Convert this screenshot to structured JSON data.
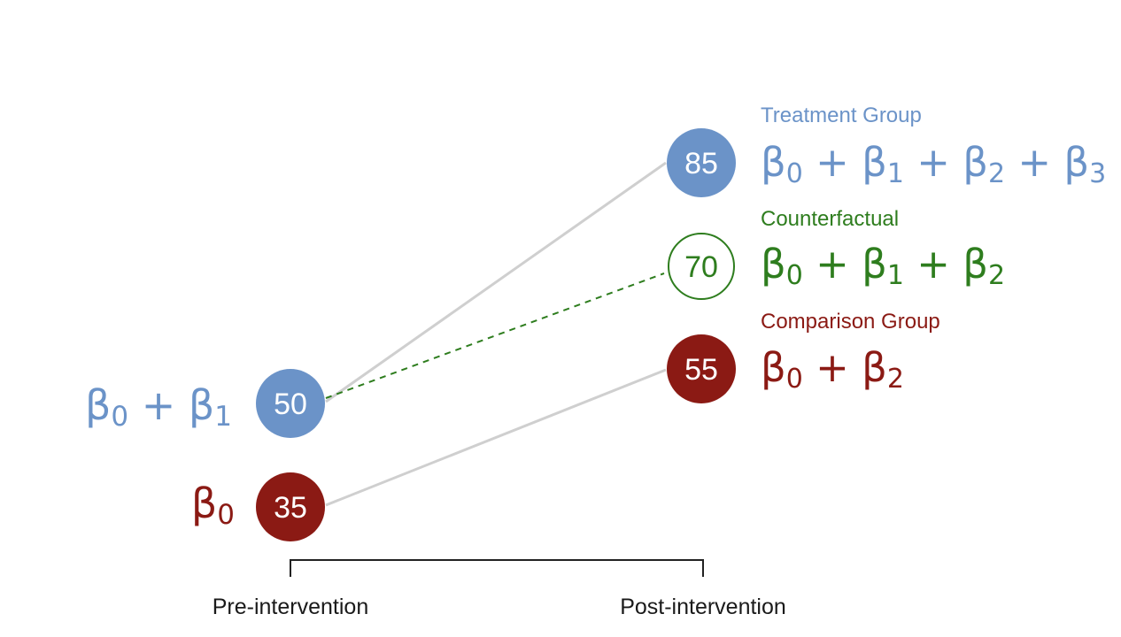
{
  "colors": {
    "treatment": "#6b93c8",
    "comparison": "#8b1a14",
    "counterfactual": "#2e7d1e",
    "connector": "#cfcfcf",
    "axis": "#222222"
  },
  "points": {
    "treatment_pre": {
      "value": "50"
    },
    "comparison_pre": {
      "value": "35"
    },
    "treatment_post": {
      "value": "85"
    },
    "counterfactual_post": {
      "value": "70"
    },
    "comparison_post": {
      "value": "55"
    }
  },
  "labels": {
    "treatment_group": "Treatment Group",
    "counterfactual": "Counterfactual",
    "comparison_group": "Comparison Group"
  },
  "equations": {
    "treatment_pre": "β0 + β1",
    "comparison_pre": "β0",
    "treatment_post": "β0 + β1 + β2 + β3",
    "counterfactual_post": "β0 + β1 + β2",
    "comparison_post": "β0 + β2"
  },
  "axis": {
    "pre": "Pre-intervention",
    "post": "Post-intervention"
  }
}
